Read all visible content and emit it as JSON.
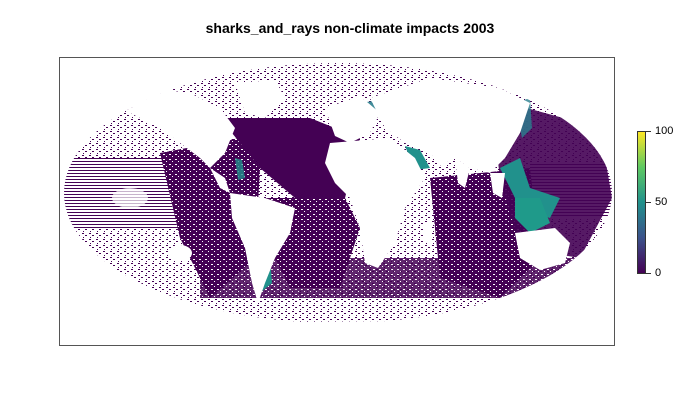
{
  "title": "sharks_and_rays non-climate impacts 2003",
  "legend": {
    "ticks": [
      {
        "value": 0,
        "label": "0"
      },
      {
        "value": 50,
        "label": "50"
      },
      {
        "value": 100,
        "label": "100"
      }
    ],
    "min": 0,
    "max": 100,
    "palette": [
      "#440154",
      "#3b528b",
      "#21918c",
      "#5ec962",
      "#fde725"
    ]
  },
  "map": {
    "projection": "Mollweide",
    "ocean_base_color": "#440154",
    "high_impact_color": "#21918c",
    "land_color": "#ffffff"
  }
}
